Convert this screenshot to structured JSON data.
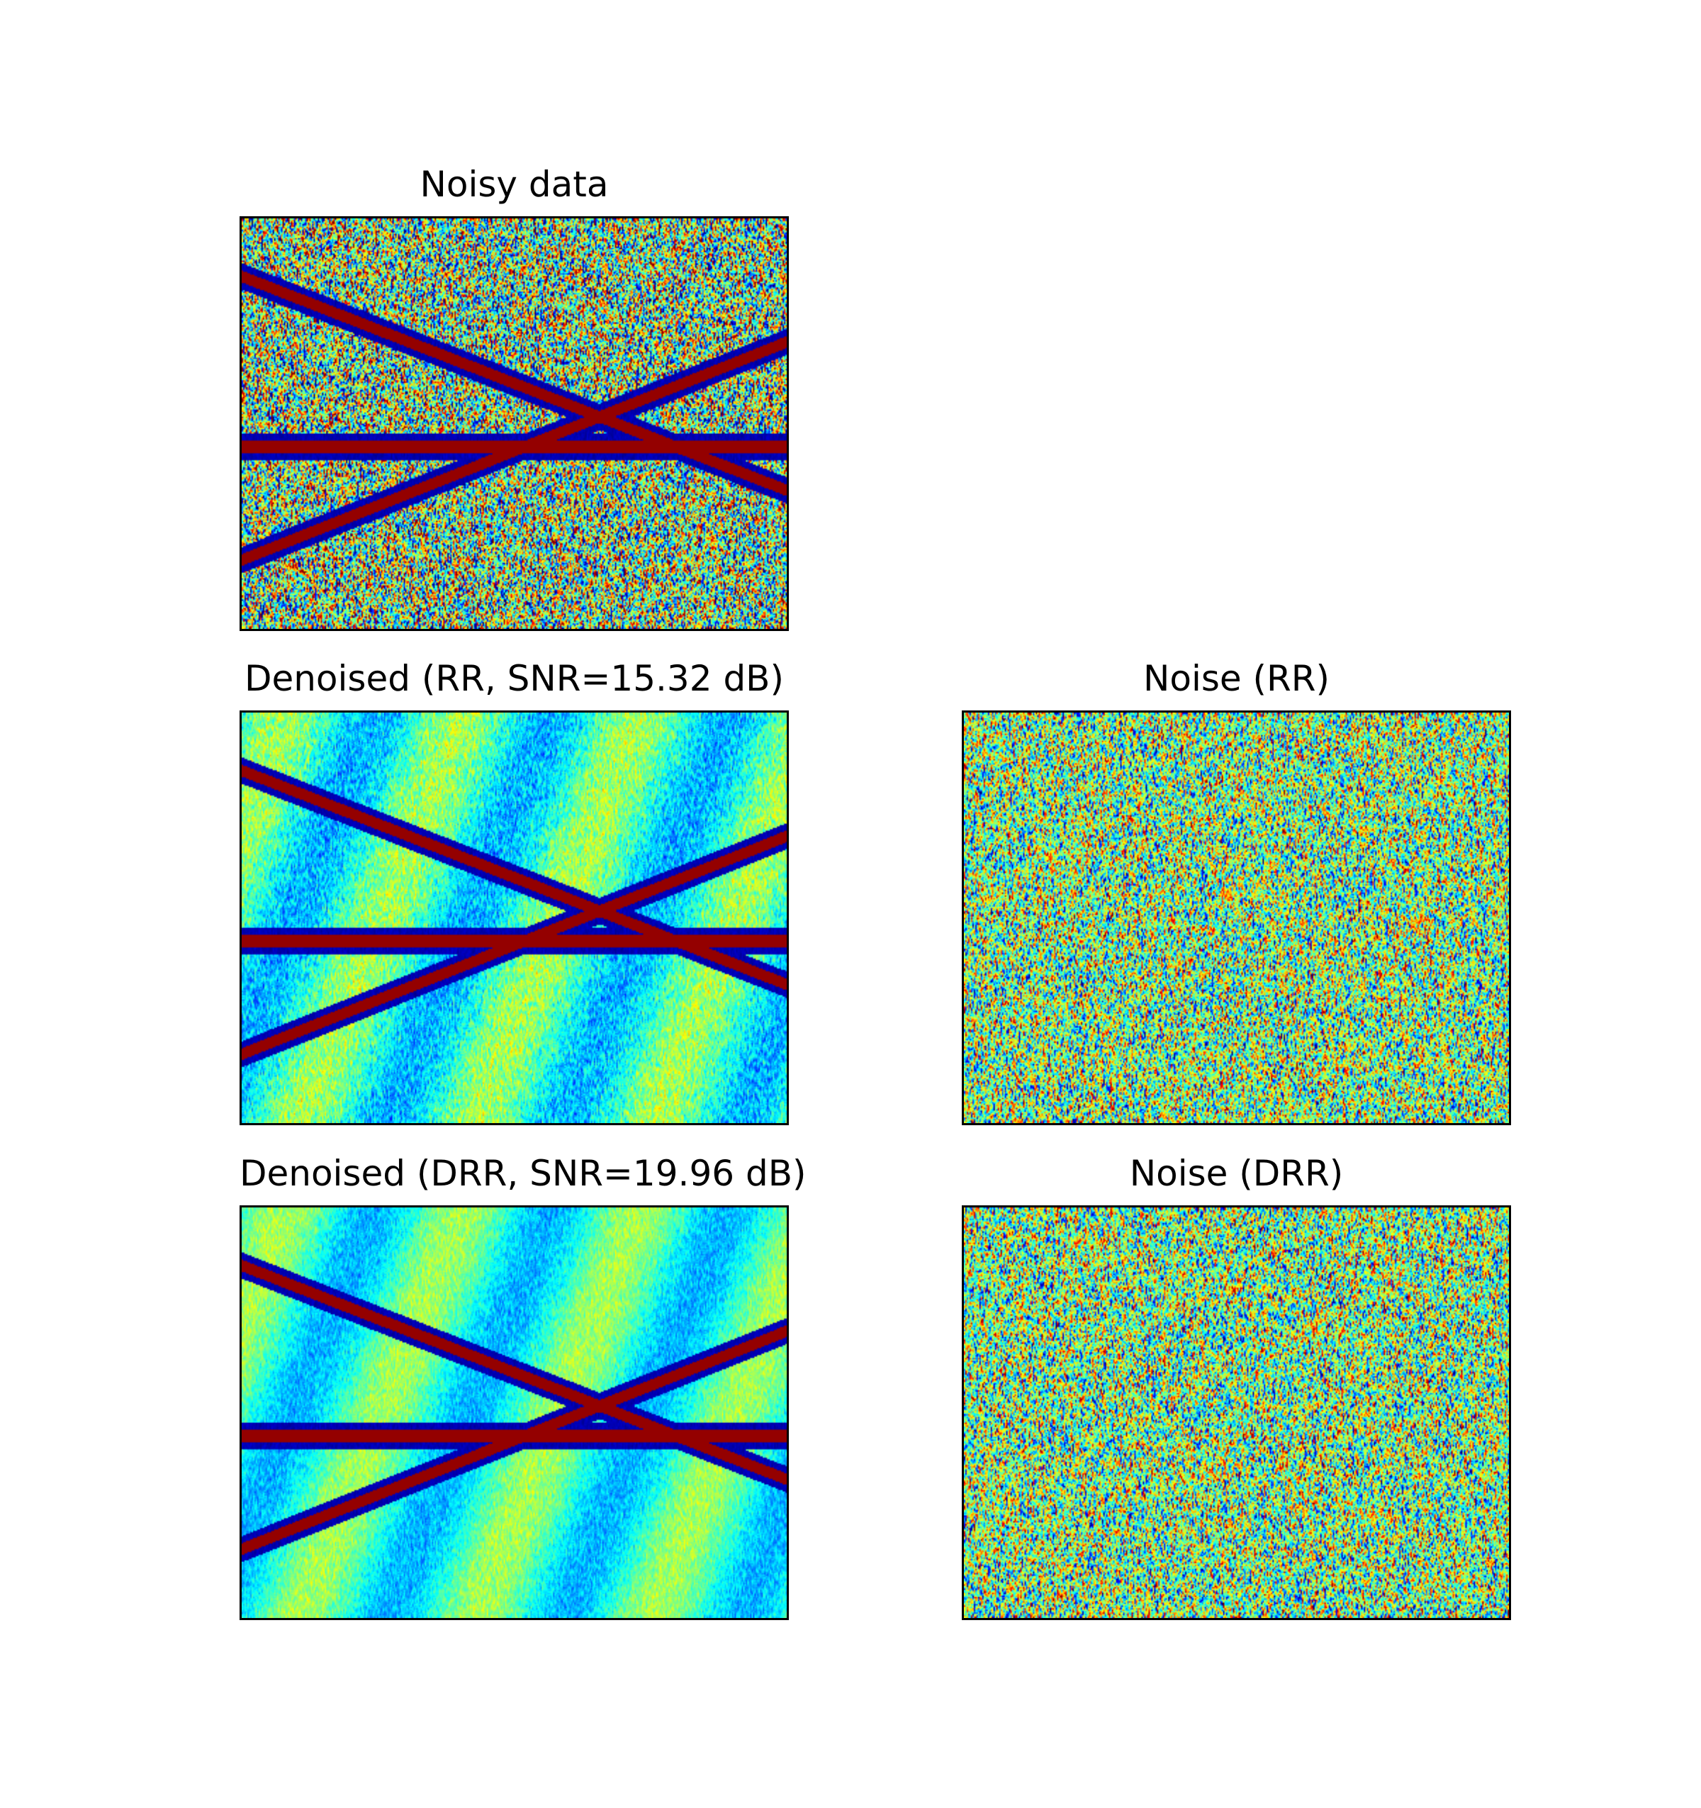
{
  "chart_data": [
    {
      "type": "heatmap",
      "id": "noisy",
      "title": "Noisy data",
      "colormap": "jet",
      "content": "events_plus_noise",
      "events": [
        {
          "kind": "dipping-down",
          "start_frac": 0.14,
          "end_frac": 0.66
        },
        {
          "kind": "dipping-up",
          "start_frac": 0.83,
          "end_frac": 0.3
        },
        {
          "kind": "flat",
          "start_frac": 0.555,
          "end_frac": 0.555
        }
      ],
      "noise_level": 1.0
    },
    {
      "type": "heatmap",
      "id": "rr",
      "title": "Denoised (RR, SNR=15.32 dB)",
      "colormap": "jet",
      "content": "events_plus_residual",
      "noise_level": 0.18
    },
    {
      "type": "heatmap",
      "id": "rr_noise",
      "title": "Noise (RR)",
      "colormap": "jet",
      "content": "noise_only",
      "noise_level": 1.0
    },
    {
      "type": "heatmap",
      "id": "drr",
      "title": "Denoised (DRR, SNR=19.96 dB)",
      "colormap": "jet",
      "content": "events_plus_residual",
      "noise_level": 0.12
    },
    {
      "type": "heatmap",
      "id": "drr_noise",
      "title": "Noise (DRR)",
      "colormap": "jet",
      "content": "noise_only",
      "noise_level": 1.0
    }
  ]
}
